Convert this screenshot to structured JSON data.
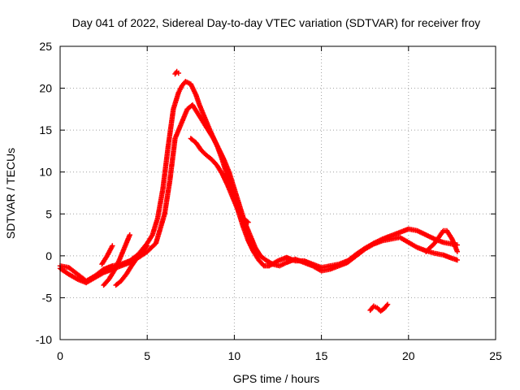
{
  "chart_data": {
    "type": "scatter",
    "title": "Day 041 of 2022, Sidereal Day-to-day VTEC variation (SDTVAR) for receiver froy",
    "xlabel": "GPS time / hours",
    "ylabel": "SDTVAR / TECUs",
    "xlim": [
      0,
      25
    ],
    "ylim": [
      -10,
      25
    ],
    "xticks": [
      0,
      5,
      10,
      15,
      20,
      25
    ],
    "yticks": [
      -10,
      -5,
      0,
      5,
      10,
      15,
      20,
      25
    ],
    "grid": true,
    "legend": "none",
    "marker": "+",
    "color": "#ff0000",
    "series": [
      {
        "name": "main-upper",
        "x": [
          0,
          0.5,
          1.0,
          1.5,
          2.0,
          2.5,
          3.0,
          3.5,
          4.0,
          4.5,
          5.0,
          5.3,
          5.6,
          5.9,
          6.2,
          6.5,
          6.8,
          7.0,
          7.2,
          7.5,
          7.8,
          8.0,
          8.3,
          8.6,
          9.0,
          9.3,
          9.6,
          9.9,
          10.2,
          10.5,
          10.8,
          11.1,
          11.4,
          11.7,
          12.0,
          12.5,
          13.0,
          13.5,
          14.0,
          14.5,
          15.0,
          15.5,
          16.0,
          16.5,
          17.0,
          17.5,
          18.0,
          18.5,
          19.0,
          19.5,
          20.0,
          20.5,
          21.0,
          21.5,
          22.0,
          22.5,
          22.8
        ],
        "y": [
          -1.2,
          -1.4,
          -2.2,
          -3.0,
          -2.4,
          -1.6,
          -1.2,
          -1.0,
          -0.6,
          0.2,
          1.5,
          2.5,
          4.5,
          8.0,
          13.0,
          17.5,
          19.5,
          20.3,
          20.8,
          20.5,
          19.2,
          18.0,
          16.5,
          15.0,
          13.2,
          11.5,
          9.5,
          7.5,
          5.5,
          3.5,
          1.8,
          0.5,
          -0.5,
          -1.2,
          -1.2,
          -0.6,
          -0.2,
          -0.6,
          -0.6,
          -1.0,
          -1.4,
          -1.2,
          -1.0,
          -0.6,
          0.2,
          0.9,
          1.5,
          2.0,
          2.4,
          2.8,
          3.2,
          3.0,
          2.5,
          2.0,
          1.6,
          1.4,
          1.3
        ]
      },
      {
        "name": "main-lower",
        "x": [
          0,
          0.5,
          1.0,
          1.5,
          2.0,
          2.5,
          3.0,
          3.5,
          4.0,
          4.5,
          5.0,
          5.5,
          6.0,
          6.3,
          6.6,
          7.0,
          7.3,
          7.6,
          7.9,
          8.2,
          8.5,
          8.8,
          9.1,
          9.4,
          9.7,
          10.0,
          10.3,
          10.6,
          10.9,
          11.2,
          11.5,
          11.8,
          12.2,
          12.6,
          13.0,
          13.5,
          14.0,
          14.5,
          15.0,
          15.5,
          16.0,
          16.5,
          17.0,
          17.5,
          18.0,
          18.5,
          19.0,
          19.5,
          20.0,
          20.5,
          21.0,
          21.5,
          22.0,
          22.5,
          22.8
        ],
        "y": [
          -1.5,
          -2.2,
          -2.8,
          -3.2,
          -2.6,
          -2.0,
          -1.6,
          -1.2,
          -0.8,
          -0.2,
          0.5,
          1.5,
          5.0,
          9.0,
          14.0,
          16.0,
          17.5,
          18.0,
          17.0,
          16.0,
          15.0,
          14.0,
          12.8,
          11.5,
          10.0,
          8.0,
          6.0,
          4.0,
          2.5,
          1.0,
          0,
          -0.5,
          -1.0,
          -1.2,
          -0.8,
          -0.4,
          -0.8,
          -1.2,
          -1.8,
          -1.6,
          -1.2,
          -0.8,
          0,
          0.8,
          1.4,
          1.8,
          2.0,
          2.2,
          1.6,
          1.0,
          0.6,
          0.3,
          0.1,
          -0.3,
          -0.5
        ]
      },
      {
        "name": "early-rise-a",
        "x": [
          2.5,
          2.8,
          3.1,
          3.4,
          3.7,
          4.0
        ],
        "y": [
          -3.5,
          -2.8,
          -1.8,
          -0.5,
          1.0,
          2.5
        ]
      },
      {
        "name": "early-rise-b",
        "x": [
          3.2,
          3.5,
          3.8,
          4.1,
          4.4,
          4.7,
          5.0
        ],
        "y": [
          -3.5,
          -3.0,
          -2.2,
          -1.2,
          -0.3,
          0.5,
          1.2
        ]
      },
      {
        "name": "early-rise-c",
        "x": [
          2.4,
          2.7,
          3.0
        ],
        "y": [
          -1.0,
          0.0,
          1.2
        ]
      },
      {
        "name": "secondary-branch",
        "x": [
          7.5,
          7.8,
          8.1,
          8.4,
          8.7,
          9.0,
          9.3,
          9.6,
          9.9,
          10.2,
          10.5,
          10.8
        ],
        "y": [
          14.0,
          13.5,
          12.6,
          12.0,
          11.5,
          10.8,
          9.8,
          8.5,
          7.0,
          5.5,
          4.5,
          4.0
        ]
      },
      {
        "name": "outlier-peak",
        "x": [
          6.6,
          6.7,
          6.8
        ],
        "y": [
          21.7,
          22.0,
          21.8
        ]
      },
      {
        "name": "isolated-dip",
        "x": [
          17.8,
          18.0,
          18.2,
          18.4,
          18.6,
          18.8
        ],
        "y": [
          -6.5,
          -6.0,
          -6.2,
          -6.6,
          -6.3,
          -5.8
        ]
      },
      {
        "name": "late-loop",
        "x": [
          21.0,
          21.5,
          22.0,
          22.2,
          22.5,
          22.8
        ],
        "y": [
          0.5,
          1.5,
          3.0,
          3.0,
          2.0,
          0.5
        ]
      }
    ]
  }
}
